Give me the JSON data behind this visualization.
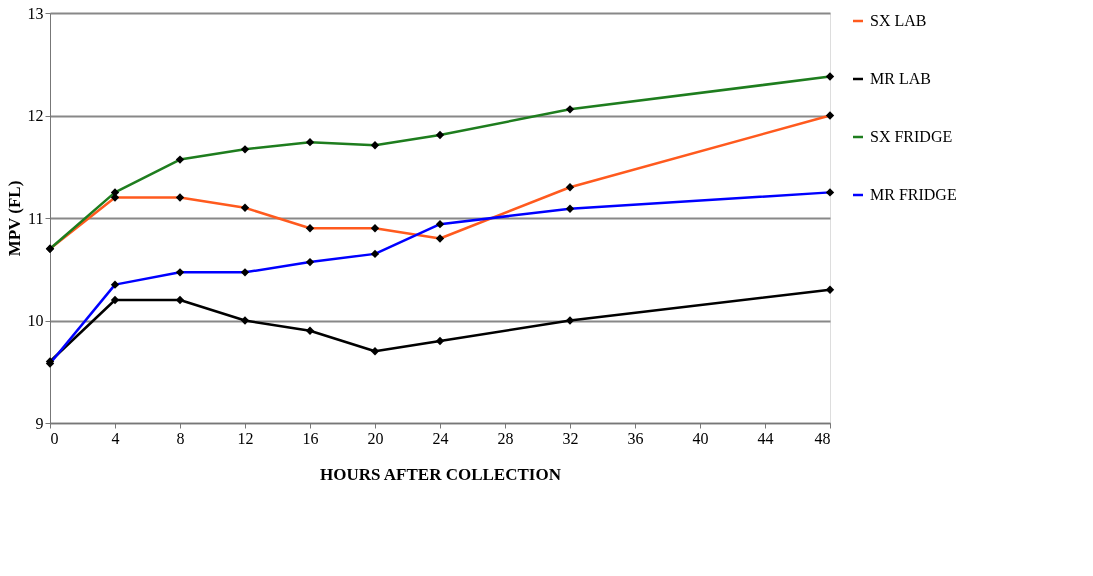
{
  "chart_data": {
    "type": "line",
    "xlabel": "HOURS AFTER COLLECTION",
    "ylabel": "MPV (FL)",
    "x": [
      0,
      4,
      8,
      12,
      16,
      20,
      24,
      32,
      48
    ],
    "series": [
      {
        "name": "SX LAB",
        "color": "#ff5a1e",
        "values": [
          10.7,
          11.2,
          11.2,
          11.1,
          10.9,
          10.9,
          10.8,
          11.3,
          12.0
        ]
      },
      {
        "name": "MR LAB",
        "color": "#000000",
        "values": [
          9.6,
          10.2,
          10.2,
          10.0,
          9.9,
          9.7,
          9.8,
          10.0,
          10.3
        ]
      },
      {
        "name": "SX FRIDGE",
        "color": "#1e7d1e",
        "values": [
          10.7,
          11.25,
          11.57,
          11.67,
          11.74,
          11.71,
          11.81,
          12.06,
          12.38
        ]
      },
      {
        "name": "MR FRIDGE",
        "color": "#0000ff",
        "values": [
          9.58,
          10.35,
          10.47,
          10.47,
          10.57,
          10.65,
          10.94,
          11.09,
          11.25
        ]
      }
    ],
    "xlim": [
      0,
      48
    ],
    "xticks": [
      0,
      4,
      8,
      12,
      16,
      20,
      24,
      28,
      32,
      36,
      40,
      44,
      48
    ],
    "ylim": [
      9,
      13
    ],
    "yticks": [
      9,
      10,
      11,
      12,
      13
    ],
    "grid": "y",
    "legend": "right",
    "marker": "diamond",
    "line_style": "solid"
  }
}
